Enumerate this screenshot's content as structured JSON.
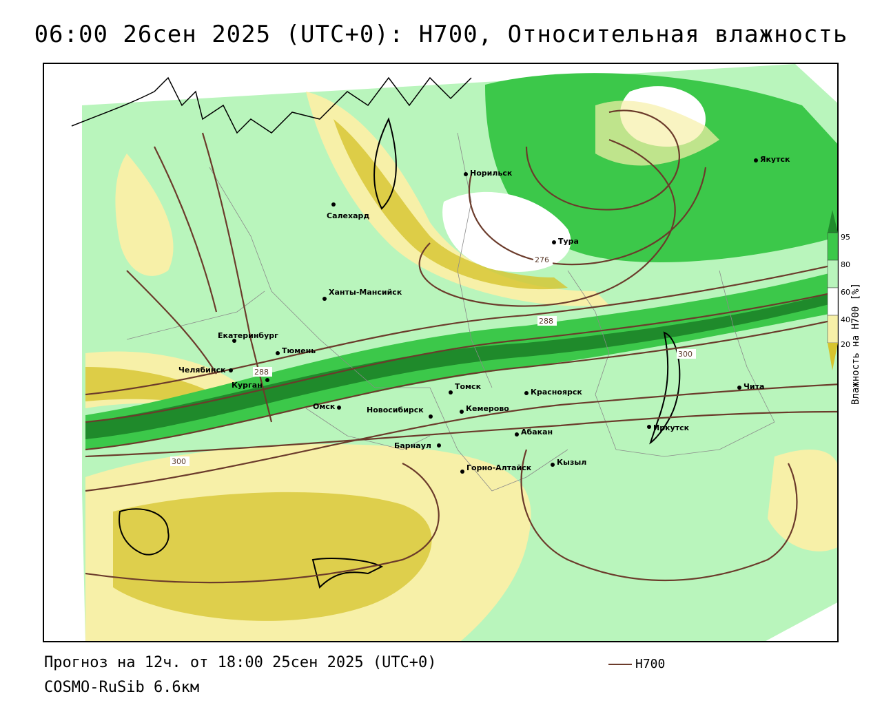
{
  "title": "06:00 26сен 2025 (UTC+0): H700, Относительная влажность",
  "footer": {
    "forecast": "Прогноз на 12ч. от 18:00 25сен 2025 (UTC+0)",
    "model": "COSMO-RuSib 6.6км"
  },
  "legend": {
    "title": "Влажность на Н700 [%]",
    "ticks": [
      "95",
      "80",
      "60",
      "40",
      "20"
    ],
    "colors": {
      "95": "#1f8a2b",
      "80": "#3cc84a",
      "60": "#b9f5bc",
      "40": "#ffffff",
      "20": "#f7f0a8",
      "dry": "#d6c42e"
    }
  },
  "line_key": {
    "label": "H700",
    "color": "#6b3b2b"
  },
  "isolines": [
    "276",
    "288",
    "288",
    "300",
    "300"
  ],
  "cities": [
    {
      "name": "Норильск"
    },
    {
      "name": "Якутск"
    },
    {
      "name": "Салехард"
    },
    {
      "name": "Тура"
    },
    {
      "name": "Ханты-Мансийск"
    },
    {
      "name": "Екатеринбург"
    },
    {
      "name": "Тюмень"
    },
    {
      "name": "Челябинск"
    },
    {
      "name": "Курган"
    },
    {
      "name": "Томск"
    },
    {
      "name": "Красноярск"
    },
    {
      "name": "Чита"
    },
    {
      "name": "Омск"
    },
    {
      "name": "Новосибирск"
    },
    {
      "name": "Кемерово"
    },
    {
      "name": "Иркутск"
    },
    {
      "name": "Абакан"
    },
    {
      "name": "Барнаул"
    },
    {
      "name": "Горно-Алтайск"
    },
    {
      "name": "Кызыл"
    }
  ]
}
